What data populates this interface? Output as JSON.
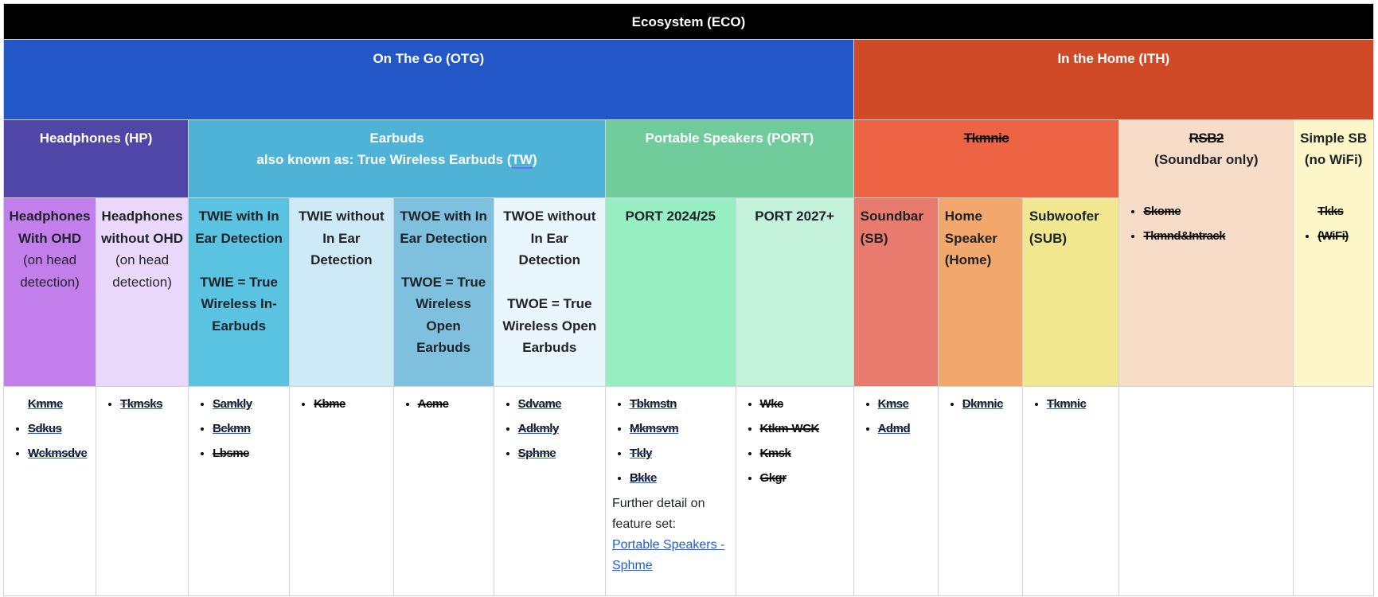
{
  "ecosystem": {
    "title": "Ecosystem (ECO)",
    "color": "#000000"
  },
  "otg": {
    "title": "On The Go (OTG)",
    "color": "#2356c7"
  },
  "ith": {
    "title": "In the Home (ITH)",
    "color": "#d04a27"
  },
  "groups": {
    "hp": {
      "title": "Headphones (HP)"
    },
    "earbuds": {
      "title": "Earbuds",
      "aka_prefix": "also known as: True Wireless Earbuds (",
      "aka_abbr": "TW",
      "aka_suffix": ")"
    },
    "port": {
      "title": "Portable Speakers (PORT)"
    },
    "ith_speakers": {
      "title": "Tkmnic"
    },
    "sb2": {
      "title": "RSB2",
      "subtitle": "(Soundbar only)"
    },
    "simple_sb": {
      "title": "Simple SB",
      "subtitle": "(no WiFi)"
    }
  },
  "subcategories": {
    "hp_ohd": {
      "title": "Headphones With OHD",
      "detail": "(on head detection)"
    },
    "hp_no_ohd": {
      "title": "Headphones without OHD",
      "detail": "(on head detection)"
    },
    "twie": {
      "title": "TWIE with In Ear Detection",
      "definition": "TWIE = True Wireless In-Earbuds"
    },
    "twie_no": {
      "title": "TWIE without In Ear Detection"
    },
    "twoe": {
      "title": "TWOE with In Ear Detection",
      "definition": "TWOE = True Wireless Open Earbuds"
    },
    "twoe_no": {
      "title": "TWOE without In Ear Detection",
      "definition": "TWOE = True Wireless Open Earbuds"
    },
    "port_2024": {
      "title": "PORT 2024/25"
    },
    "port_2027": {
      "title": "PORT 2027+"
    },
    "soundbar": {
      "title": "Soundbar (SB)"
    },
    "home_speaker": {
      "title": "Home Speaker (Home)"
    },
    "subwoofer": {
      "title": "Subwoofer (SUB)"
    }
  },
  "lists": {
    "hp_ohd": [
      "Kmme Sdkus",
      "Wckmsdve"
    ],
    "hp_no_ohd": [
      "Tkmsks"
    ],
    "twie": [
      "Samkly",
      "Bckmn",
      "Lbsme"
    ],
    "twie_no": [
      "Kbme"
    ],
    "twoe": [
      "Acme"
    ],
    "twoe_no": [
      "Sdvame",
      "Adkmly",
      "Sphme"
    ],
    "port_2024": [
      "Tbkmstn",
      "Mkmsvm",
      "Tkly",
      "Bkke"
    ],
    "port_2027": [
      "Wkc",
      "Ktkm-WCK",
      "Kmsk",
      "Gkgr"
    ],
    "soundbar": [
      "Kmse",
      "Admd"
    ],
    "home_speaker": [
      "Dkmnic"
    ],
    "subwoofer": [
      "Tkmnic"
    ],
    "sb2": [
      "Skome",
      "Tkmnd&Intrack"
    ],
    "simple_sb": [
      "Tkks (WiFi)"
    ]
  },
  "port_note": {
    "text": "Further detail on feature set:",
    "link_text": "Portable Speakers - Sphme"
  }
}
